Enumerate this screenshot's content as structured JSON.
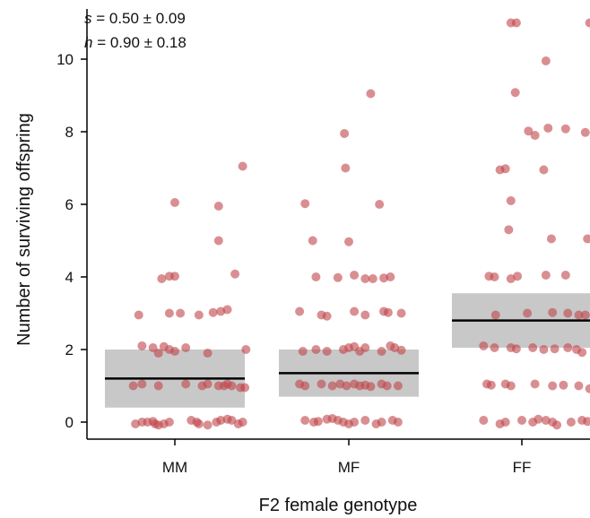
{
  "chart_data": {
    "type": "scatter",
    "xlabel": "F2 female genotype",
    "ylabel": "Number of surviving offspring",
    "categories": [
      "MM",
      "MF",
      "FF"
    ],
    "yticks": [
      0,
      2,
      4,
      6,
      8,
      10
    ],
    "ylim": [
      -0.4,
      11.3
    ],
    "grid": false,
    "annotations": [
      {
        "symbol": "s",
        "text": " = 0.50 ± 0.09"
      },
      {
        "symbol": "h",
        "text": " = 0.90 ± 0.18"
      }
    ],
    "colors": {
      "points": "#c0454a",
      "band": "#c8c8c8",
      "median": "#000000"
    },
    "summary": [
      {
        "category": "MM",
        "median": 1.2,
        "lower": 0.4,
        "upper": 2.0
      },
      {
        "category": "MF",
        "median": 1.35,
        "lower": 0.7,
        "upper": 2.0
      },
      {
        "category": "FF",
        "median": 2.8,
        "lower": 2.05,
        "upper": 3.55
      }
    ],
    "series": [
      {
        "category": "MM",
        "points": [
          [
            0.0,
            6.05
          ],
          [
            0.4,
            5.95
          ],
          [
            0.4,
            5.0
          ],
          [
            0.62,
            7.05
          ],
          [
            0.55,
            4.08
          ],
          [
            -0.05,
            4.02
          ],
          [
            -0.12,
            3.95
          ],
          [
            0.0,
            4.02
          ],
          [
            -0.33,
            2.95
          ],
          [
            -0.05,
            3.0
          ],
          [
            0.05,
            3.0
          ],
          [
            0.22,
            2.95
          ],
          [
            0.35,
            3.02
          ],
          [
            0.42,
            3.05
          ],
          [
            0.48,
            3.1
          ],
          [
            -0.3,
            2.1
          ],
          [
            -0.2,
            2.05
          ],
          [
            -0.1,
            2.08
          ],
          [
            -0.05,
            2.0
          ],
          [
            0.0,
            1.95
          ],
          [
            -0.15,
            1.9
          ],
          [
            0.1,
            2.05
          ],
          [
            0.3,
            1.9
          ],
          [
            0.65,
            2.0
          ],
          [
            -0.3,
            1.05
          ],
          [
            -0.38,
            1.0
          ],
          [
            -0.15,
            1.0
          ],
          [
            0.1,
            1.05
          ],
          [
            0.25,
            1.0
          ],
          [
            0.3,
            1.05
          ],
          [
            0.4,
            1.0
          ],
          [
            0.45,
            1.0
          ],
          [
            0.48,
            1.05
          ],
          [
            0.52,
            1.0
          ],
          [
            0.6,
            0.95
          ],
          [
            0.64,
            0.95
          ],
          [
            -0.36,
            -0.05
          ],
          [
            -0.3,
            0.0
          ],
          [
            -0.25,
            0.0
          ],
          [
            -0.2,
            0.02
          ],
          [
            -0.18,
            -0.05
          ],
          [
            -0.15,
            -0.08
          ],
          [
            -0.1,
            -0.05
          ],
          [
            -0.05,
            0.0
          ],
          [
            0.15,
            0.05
          ],
          [
            0.2,
            0.0
          ],
          [
            0.22,
            -0.05
          ],
          [
            0.3,
            -0.08
          ],
          [
            0.38,
            0.0
          ],
          [
            0.42,
            0.05
          ],
          [
            0.48,
            0.08
          ],
          [
            0.52,
            0.05
          ],
          [
            0.58,
            -0.05
          ],
          [
            0.62,
            0.0
          ]
        ]
      },
      {
        "category": "MF",
        "points": [
          [
            -0.4,
            6.02
          ],
          [
            -0.33,
            5.0
          ],
          [
            -0.04,
            7.95
          ],
          [
            -0.03,
            7.0
          ],
          [
            0.2,
            9.05
          ],
          [
            0.28,
            6.0
          ],
          [
            0.0,
            4.97
          ],
          [
            0.05,
            4.05
          ],
          [
            -0.3,
            4.0
          ],
          [
            -0.1,
            3.98
          ],
          [
            0.15,
            3.95
          ],
          [
            0.22,
            3.95
          ],
          [
            0.32,
            3.97
          ],
          [
            0.38,
            4.0
          ],
          [
            -0.45,
            3.05
          ],
          [
            -0.25,
            2.95
          ],
          [
            -0.2,
            2.92
          ],
          [
            0.05,
            3.05
          ],
          [
            0.15,
            2.95
          ],
          [
            0.32,
            3.05
          ],
          [
            0.36,
            3.02
          ],
          [
            0.48,
            3.0
          ],
          [
            -0.42,
            1.95
          ],
          [
            -0.3,
            2.0
          ],
          [
            -0.2,
            1.95
          ],
          [
            -0.05,
            2.0
          ],
          [
            0.0,
            2.05
          ],
          [
            0.05,
            2.08
          ],
          [
            0.1,
            1.95
          ],
          [
            0.15,
            2.05
          ],
          [
            0.3,
            1.95
          ],
          [
            0.38,
            2.1
          ],
          [
            0.42,
            2.05
          ],
          [
            0.48,
            1.98
          ],
          [
            -0.45,
            1.05
          ],
          [
            -0.4,
            1.0
          ],
          [
            -0.25,
            1.05
          ],
          [
            -0.15,
            1.0
          ],
          [
            -0.08,
            1.05
          ],
          [
            -0.02,
            1.0
          ],
          [
            0.05,
            1.05
          ],
          [
            0.1,
            1.0
          ],
          [
            0.15,
            1.02
          ],
          [
            0.2,
            0.98
          ],
          [
            0.3,
            1.05
          ],
          [
            0.35,
            1.0
          ],
          [
            0.45,
            1.0
          ],
          [
            -0.4,
            0.05
          ],
          [
            -0.32,
            0.0
          ],
          [
            -0.28,
            0.02
          ],
          [
            -0.2,
            0.08
          ],
          [
            -0.15,
            0.1
          ],
          [
            -0.1,
            0.05
          ],
          [
            -0.05,
            0.0
          ],
          [
            0.0,
            -0.05
          ],
          [
            0.05,
            0.0
          ],
          [
            0.15,
            0.05
          ],
          [
            0.25,
            -0.05
          ],
          [
            0.3,
            0.0
          ],
          [
            0.4,
            0.05
          ],
          [
            0.45,
            0.0
          ]
        ]
      },
      {
        "category": "FF",
        "points": [
          [
            -0.1,
            11.0
          ],
          [
            -0.05,
            11.0
          ],
          [
            0.62,
            11.0
          ],
          [
            0.22,
            9.95
          ],
          [
            -0.06,
            9.08
          ],
          [
            0.06,
            8.02
          ],
          [
            0.12,
            7.9
          ],
          [
            0.24,
            8.1
          ],
          [
            0.4,
            8.08
          ],
          [
            0.58,
            7.98
          ],
          [
            -0.2,
            6.95
          ],
          [
            -0.15,
            6.98
          ],
          [
            0.2,
            6.95
          ],
          [
            -0.1,
            6.1
          ],
          [
            0.27,
            5.05
          ],
          [
            0.6,
            5.05
          ],
          [
            -0.12,
            5.3
          ],
          [
            -0.3,
            4.02
          ],
          [
            -0.25,
            4.0
          ],
          [
            -0.1,
            3.95
          ],
          [
            -0.04,
            4.02
          ],
          [
            0.22,
            4.05
          ],
          [
            0.4,
            4.05
          ],
          [
            -0.24,
            2.95
          ],
          [
            0.05,
            3.0
          ],
          [
            0.28,
            3.02
          ],
          [
            0.42,
            3.0
          ],
          [
            0.52,
            2.95
          ],
          [
            0.58,
            2.95
          ],
          [
            -0.35,
            2.1
          ],
          [
            -0.25,
            2.05
          ],
          [
            -0.1,
            2.05
          ],
          [
            -0.05,
            2.02
          ],
          [
            0.1,
            2.05
          ],
          [
            0.2,
            2.0
          ],
          [
            0.3,
            2.02
          ],
          [
            0.42,
            2.05
          ],
          [
            0.5,
            2.0
          ],
          [
            0.55,
            1.92
          ],
          [
            -0.32,
            1.05
          ],
          [
            -0.28,
            1.02
          ],
          [
            -0.15,
            1.05
          ],
          [
            -0.1,
            1.0
          ],
          [
            0.12,
            1.05
          ],
          [
            0.28,
            1.0
          ],
          [
            0.38,
            1.02
          ],
          [
            0.52,
            1.0
          ],
          [
            0.62,
            0.92
          ],
          [
            -0.35,
            0.05
          ],
          [
            -0.2,
            -0.05
          ],
          [
            -0.15,
            0.0
          ],
          [
            0.0,
            0.05
          ],
          [
            0.1,
            0.0
          ],
          [
            0.15,
            0.08
          ],
          [
            0.22,
            0.05
          ],
          [
            0.28,
            0.0
          ],
          [
            0.32,
            -0.08
          ],
          [
            0.45,
            0.0
          ],
          [
            0.55,
            0.05
          ],
          [
            0.6,
            0.02
          ]
        ]
      }
    ]
  }
}
